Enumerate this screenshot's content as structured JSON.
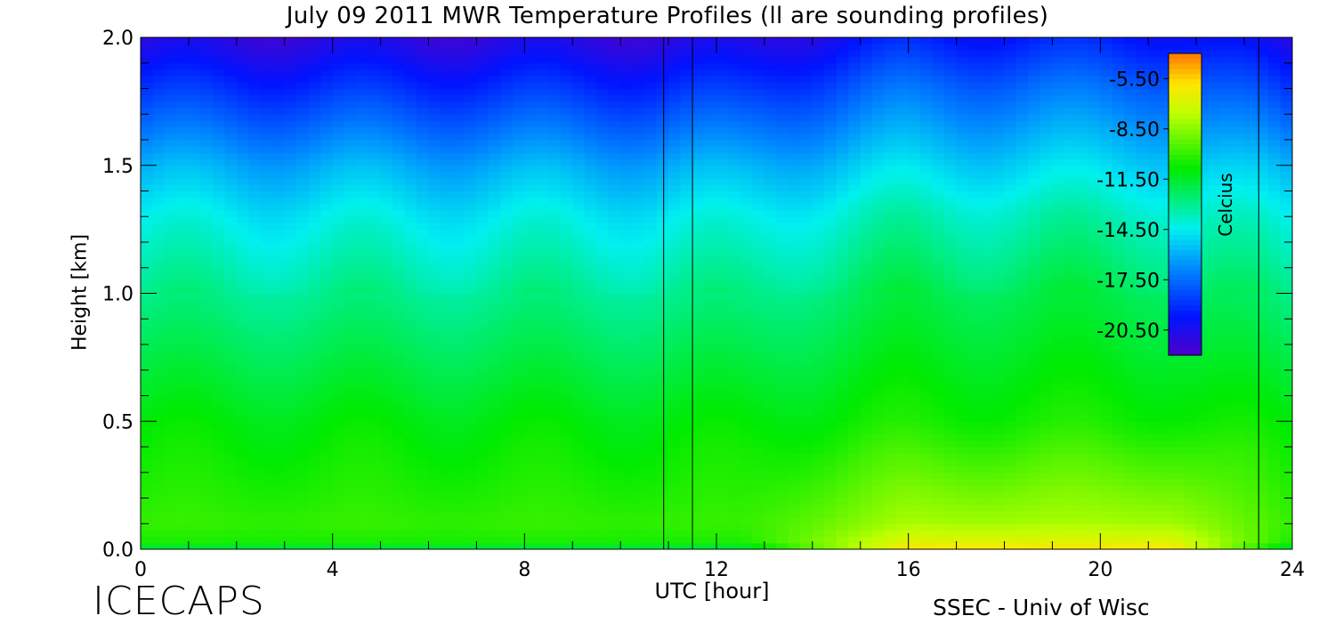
{
  "chart_data": {
    "type": "heatmap",
    "title": "July 09 2011 MWR Temperature Profiles (ll are sounding profiles)",
    "xlabel": "UTC [hour]",
    "ylabel": "Height [km]",
    "xlim": [
      0,
      24
    ],
    "ylim": [
      0,
      2
    ],
    "x_ticks": [
      "0",
      "4",
      "8",
      "12",
      "16",
      "20",
      "24"
    ],
    "y_ticks": [
      "0.0",
      "0.5",
      "1.0",
      "1.5",
      "2.0"
    ],
    "colorbar": {
      "label": "Celcius",
      "range": [
        -22.0,
        -4.0
      ],
      "tick_labels": [
        "-5.50",
        "-8.50",
        "-11.50",
        "-14.50",
        "-17.50",
        "-20.50"
      ]
    },
    "sounding_times_hour": [
      10.9,
      11.5,
      23.3
    ],
    "height_profile_km": [
      0.0,
      0.02,
      0.1,
      0.5,
      1.0,
      1.3,
      1.5,
      1.8,
      2.0
    ],
    "temperature_profile_celsius": {
      "early_hours": [
        -13.0,
        -10.5,
        -10.0,
        -11.0,
        -13.0,
        -14.5,
        -16.0,
        -19.0,
        -21.0
      ],
      "afternoon": [
        -5.5,
        -6.5,
        -8.0,
        -10.5,
        -12.0,
        -13.5,
        -15.0,
        -17.5,
        -19.5
      ]
    }
  },
  "footer": {
    "brand": "ICECAPS",
    "credit": "SSEC - Univ of Wisc"
  }
}
